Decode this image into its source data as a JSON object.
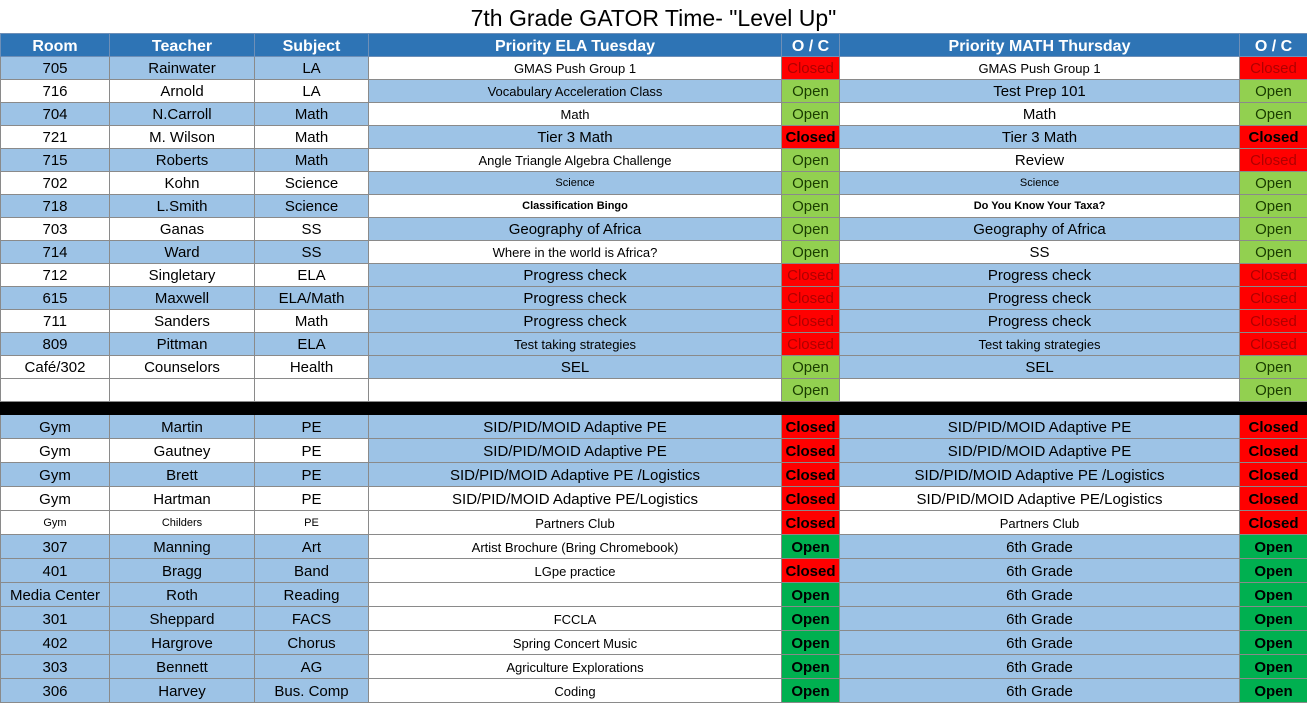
{
  "title": "7th Grade GATOR Time- \"Level Up\"",
  "headers": [
    "Room",
    "Teacher",
    "Subject",
    "Priority ELA Tuesday",
    "O / C",
    "Priority MATH Thursday",
    "O / C"
  ],
  "rows": [
    [
      "705",
      "Rainwater",
      "LA",
      "GMAS Push Group 1",
      "Closed",
      "GMAS Push Group 1",
      "Closed"
    ],
    [
      "716",
      "Arnold",
      "LA",
      "Vocabulary Acceleration Class",
      "Open",
      "Test Prep 101",
      "Open"
    ],
    [
      "704",
      "N.Carroll",
      "Math",
      "Math",
      "Open",
      "Math",
      "Open"
    ],
    [
      "721",
      "M. Wilson",
      "Math",
      "Tier 3 Math",
      "Closed",
      "Tier 3 Math",
      "Closed"
    ],
    [
      "715",
      "Roberts",
      "Math",
      "Angle Triangle Algebra Challenge",
      "Open",
      "Review",
      "Closed"
    ],
    [
      "702",
      "Kohn",
      "Science",
      "Science",
      "Open",
      "Science",
      "Open"
    ],
    [
      "718",
      "L.Smith",
      "Science",
      "Classification Bingo",
      "Open",
      "Do You Know Your Taxa?",
      "Open"
    ],
    [
      "703",
      "Ganas",
      "SS",
      "Geography of Africa",
      "Open",
      "Geography of Africa",
      "Open"
    ],
    [
      "714",
      "Ward",
      "SS",
      "Where in the world is Africa?",
      "Open",
      "SS",
      "Open"
    ],
    [
      "712",
      "Singletary",
      "ELA",
      "Progress check",
      "Closed",
      "Progress check",
      "Closed"
    ],
    [
      "615",
      "Maxwell",
      "ELA/Math",
      "Progress check",
      "Closed",
      "Progress check",
      "Closed"
    ],
    [
      "711",
      "Sanders",
      "Math",
      "Progress check",
      "Closed",
      "Progress check",
      "Closed"
    ],
    [
      "809",
      "Pittman",
      "ELA",
      "Test taking strategies",
      "Closed",
      "Test taking strategies",
      "Closed"
    ],
    [
      "Café/302",
      "Counselors",
      "Health",
      "SEL",
      "Open",
      "SEL",
      "Open"
    ],
    [
      "",
      "",
      "",
      "",
      "Open",
      "",
      "Open"
    ]
  ],
  "rows2": [
    [
      "Gym",
      "Martin",
      "PE",
      "SID/PID/MOID Adaptive PE",
      "Closed",
      "SID/PID/MOID Adaptive PE",
      "Closed"
    ],
    [
      "Gym",
      "Gautney",
      "PE",
      "SID/PID/MOID Adaptive PE",
      "Closed",
      "SID/PID/MOID Adaptive PE",
      "Closed"
    ],
    [
      "Gym",
      "Brett",
      "PE",
      "SID/PID/MOID Adaptive PE /Logistics",
      "Closed",
      "SID/PID/MOID Adaptive PE /Logistics",
      "Closed"
    ],
    [
      "Gym",
      "Hartman",
      "PE",
      "SID/PID/MOID Adaptive PE/Logistics",
      "Closed",
      "SID/PID/MOID Adaptive PE/Logistics",
      "Closed"
    ],
    [
      "Gym",
      "Childers",
      "PE",
      "Partners Club",
      "Closed",
      "Partners Club",
      "Closed"
    ],
    [
      "307",
      "Manning",
      "Art",
      "Artist Brochure (Bring Chromebook)",
      "Open",
      "6th Grade",
      "Open"
    ],
    [
      "401",
      "Bragg",
      "Band",
      "LGpe practice",
      "Closed",
      "6th Grade",
      "Open"
    ],
    [
      "Media Center",
      "Roth",
      "Reading",
      "",
      "Open",
      "6th Grade",
      "Open"
    ],
    [
      "301",
      "Sheppard",
      "FACS",
      "FCCLA",
      "Open",
      "6th Grade",
      "Open"
    ],
    [
      "402",
      "Hargrove",
      "Chorus",
      "Spring Concert Music",
      "Open",
      "6th Grade",
      "Open"
    ],
    [
      "303",
      "Bennett",
      "AG",
      "Agriculture Explorations",
      "Open",
      "6th Grade",
      "Open"
    ],
    [
      "306",
      "Harvey",
      "Bus. Comp",
      "Coding",
      "Open",
      "6th Grade",
      "Open"
    ]
  ]
}
